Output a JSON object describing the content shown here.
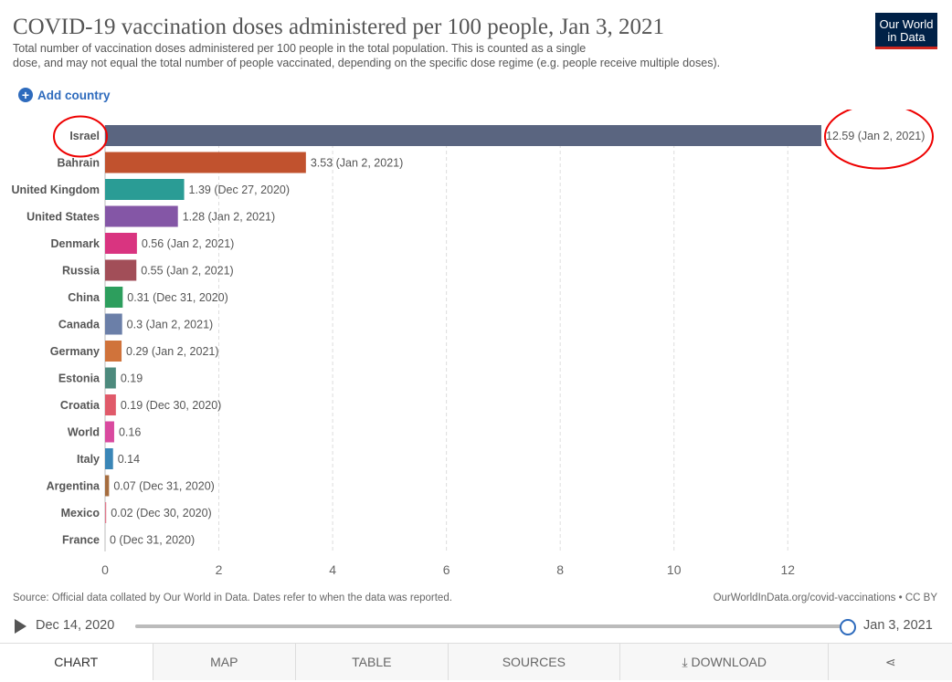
{
  "header": {
    "title": "COVID-19 vaccination doses administered per 100 people, Jan 3, 2021",
    "subtitle_line1": "Total number of vaccination doses administered per 100 people in the total population. This is counted as a single",
    "subtitle_line2": "dose, and may not equal the total number of people vaccinated, depending on the specific dose regime (e.g. people receive multiple doses).",
    "logo_line1": "Our World",
    "logo_line2": "in Data"
  },
  "add_country": {
    "icon": "plus-circle-icon",
    "label": "Add country"
  },
  "chart_data": {
    "type": "bar",
    "orientation": "horizontal",
    "title": "COVID-19 vaccination doses administered per 100 people, Jan 3, 2021",
    "xlim": [
      0,
      12.59
    ],
    "xticks": [
      0,
      2,
      4,
      6,
      8,
      10,
      12
    ],
    "categories": [
      "Israel",
      "Bahrain",
      "United Kingdom",
      "United States",
      "Denmark",
      "Russia",
      "China",
      "Canada",
      "Germany",
      "Estonia",
      "Croatia",
      "World",
      "Italy",
      "Argentina",
      "Mexico",
      "France"
    ],
    "values": [
      12.59,
      3.53,
      1.39,
      1.28,
      0.56,
      0.55,
      0.31,
      0.3,
      0.29,
      0.19,
      0.19,
      0.16,
      0.14,
      0.07,
      0.02,
      0
    ],
    "labels": [
      "12.59 (Jan 2, 2021)",
      "3.53 (Jan 2, 2021)",
      "1.39 (Dec 27, 2020)",
      "1.28 (Jan 2, 2021)",
      "0.56 (Jan 2, 2021)",
      "0.55 (Jan 2, 2021)",
      "0.31 (Dec 31, 2020)",
      "0.3 (Jan 2, 2021)",
      "0.29 (Jan 2, 2021)",
      "0.19",
      "0.19 (Dec 30, 2020)",
      "0.16",
      "0.14",
      "0.07 (Dec 31, 2020)",
      "0.02 (Dec 30, 2020)",
      "0 (Dec 31, 2020)"
    ],
    "colors": [
      "#5a6580",
      "#c1522e",
      "#2a9c95",
      "#8456a6",
      "#d93480",
      "#a24e58",
      "#2d9e5d",
      "#6b7fa8",
      "#d0733b",
      "#4d8a7d",
      "#e05a6a",
      "#d94a9f",
      "#3a86b7",
      "#a66d3f",
      "#e0788c",
      "#999999"
    ],
    "grid": true,
    "annotation": "Israel row circled in red"
  },
  "footer": {
    "source": "Source: Official data collated by Our World in Data. Dates refer to when the data was reported.",
    "url": "OurWorldInData.org/covid-vaccinations • CC BY"
  },
  "timeline": {
    "start": "Dec 14, 2020",
    "end": "Jan 3, 2021",
    "position": 1.0
  },
  "tabs": [
    {
      "label": "CHART",
      "active": true
    },
    {
      "label": "MAP",
      "active": false
    },
    {
      "label": "TABLE",
      "active": false
    },
    {
      "label": "SOURCES",
      "active": false
    },
    {
      "label": "⤓ DOWNLOAD",
      "active": false
    },
    {
      "label": "⋖",
      "active": false
    }
  ]
}
